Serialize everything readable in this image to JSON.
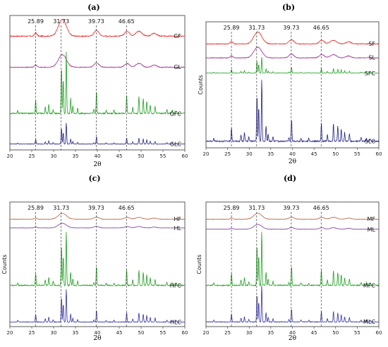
{
  "chart_data": [
    {
      "panel": "(a)",
      "type": "line",
      "xlabel": "2θ",
      "ylabel": "",
      "xlim": [
        20,
        60
      ],
      "xticks": [
        20,
        25,
        30,
        35,
        40,
        45,
        50,
        55,
        60
      ],
      "peak_lines": [
        25.89,
        31.73,
        39.73,
        46.65
      ],
      "series": [
        {
          "name": "GF",
          "color": "#ee2222",
          "kind": "broad",
          "offset": 0.84,
          "scale": 0.13
        },
        {
          "name": "GL",
          "color": "#9b2c8f",
          "kind": "broad",
          "offset": 0.61,
          "scale": 0.1
        },
        {
          "name": "GFC",
          "color": "#22a022",
          "kind": "sharp",
          "offset": 0.26,
          "scale": 0.47
        },
        {
          "name": "GLC",
          "color": "#222288",
          "kind": "sharp",
          "offset": 0.04,
          "scale": 0.16
        }
      ]
    },
    {
      "panel": "(b)",
      "type": "line",
      "xlabel": "2θ",
      "ylabel": "Counts",
      "xlim": [
        20,
        60
      ],
      "xticks": [
        20,
        25,
        30,
        35,
        40,
        45,
        50,
        55,
        60
      ],
      "peak_lines": [
        25.89,
        31.73,
        39.73,
        46.65
      ],
      "series": [
        {
          "name": "SF",
          "color": "#ee2222",
          "kind": "broad",
          "offset": 0.82,
          "scale": 0.1
        },
        {
          "name": "SL",
          "color": "#9b2c8f",
          "kind": "broad",
          "offset": 0.71,
          "scale": 0.09
        },
        {
          "name": "SFC",
          "color": "#22a022",
          "kind": "sharp",
          "offset": 0.59,
          "scale": 0.13
        },
        {
          "name": "SLC",
          "color": "#222288",
          "kind": "sharp",
          "offset": 0.04,
          "scale": 0.5
        }
      ]
    },
    {
      "panel": "(c)",
      "type": "line",
      "xlabel": "2θ",
      "ylabel": "Counts",
      "xlim": [
        20,
        60
      ],
      "xticks": [
        20,
        25,
        30,
        35,
        40,
        45,
        50,
        55,
        60
      ],
      "peak_lines": [
        25.89,
        31.73,
        39.73,
        46.65
      ],
      "series": [
        {
          "name": "HF",
          "color": "#b5603a",
          "kind": "broad",
          "offset": 0.86,
          "scale": 0.05
        },
        {
          "name": "HL",
          "color": "#7a3c9c",
          "kind": "broad",
          "offset": 0.79,
          "scale": 0.04
        },
        {
          "name": "HFC",
          "color": "#22a022",
          "kind": "sharp",
          "offset": 0.32,
          "scale": 0.44
        },
        {
          "name": "HLC",
          "color": "#3333aa",
          "kind": "sharp",
          "offset": 0.03,
          "scale": 0.27
        }
      ]
    },
    {
      "panel": "(d)",
      "type": "line",
      "xlabel": "2θ",
      "ylabel": "Counts",
      "xlim": [
        20,
        60
      ],
      "xticks": [
        20,
        25,
        30,
        35,
        40,
        45,
        50,
        55,
        60
      ],
      "peak_lines": [
        25.89,
        31.73,
        39.73,
        46.65
      ],
      "series": [
        {
          "name": "MF",
          "color": "#b5603a",
          "kind": "broad",
          "offset": 0.86,
          "scale": 0.05
        },
        {
          "name": "ML",
          "color": "#7a3c9c",
          "kind": "broad",
          "offset": 0.78,
          "scale": 0.04
        },
        {
          "name": "MFC",
          "color": "#22a022",
          "kind": "sharp",
          "offset": 0.32,
          "scale": 0.44
        },
        {
          "name": "MLC",
          "color": "#3333aa",
          "kind": "sharp",
          "offset": 0.03,
          "scale": 0.3
        }
      ]
    }
  ]
}
